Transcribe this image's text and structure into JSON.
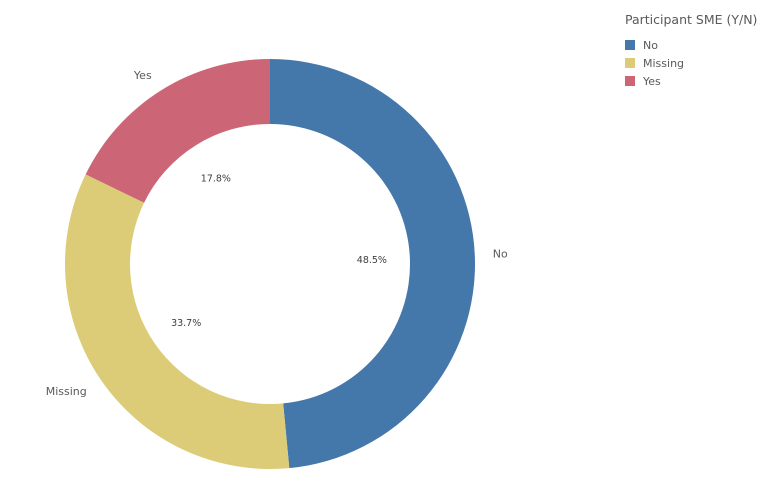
{
  "chart_data": {
    "type": "pie",
    "variant": "donut",
    "title": "",
    "legend_title": "Participant SME (Y/N)",
    "legend_position": "top-right",
    "categories": [
      "No",
      "Missing",
      "Yes"
    ],
    "values": [
      48.5,
      33.7,
      17.8
    ],
    "value_labels": [
      "48.5%",
      "33.7%",
      "17.8%"
    ],
    "colors": [
      "#4477aa",
      "#ddcc77",
      "#cc6677"
    ],
    "start_angle_deg": 0,
    "direction": "clockwise"
  },
  "legend": {
    "title": "Participant SME (Y/N)",
    "items": [
      {
        "label": "No",
        "color": "#4477aa"
      },
      {
        "label": "Missing",
        "color": "#ddcc77"
      },
      {
        "label": "Yes",
        "color": "#cc6677"
      }
    ]
  }
}
